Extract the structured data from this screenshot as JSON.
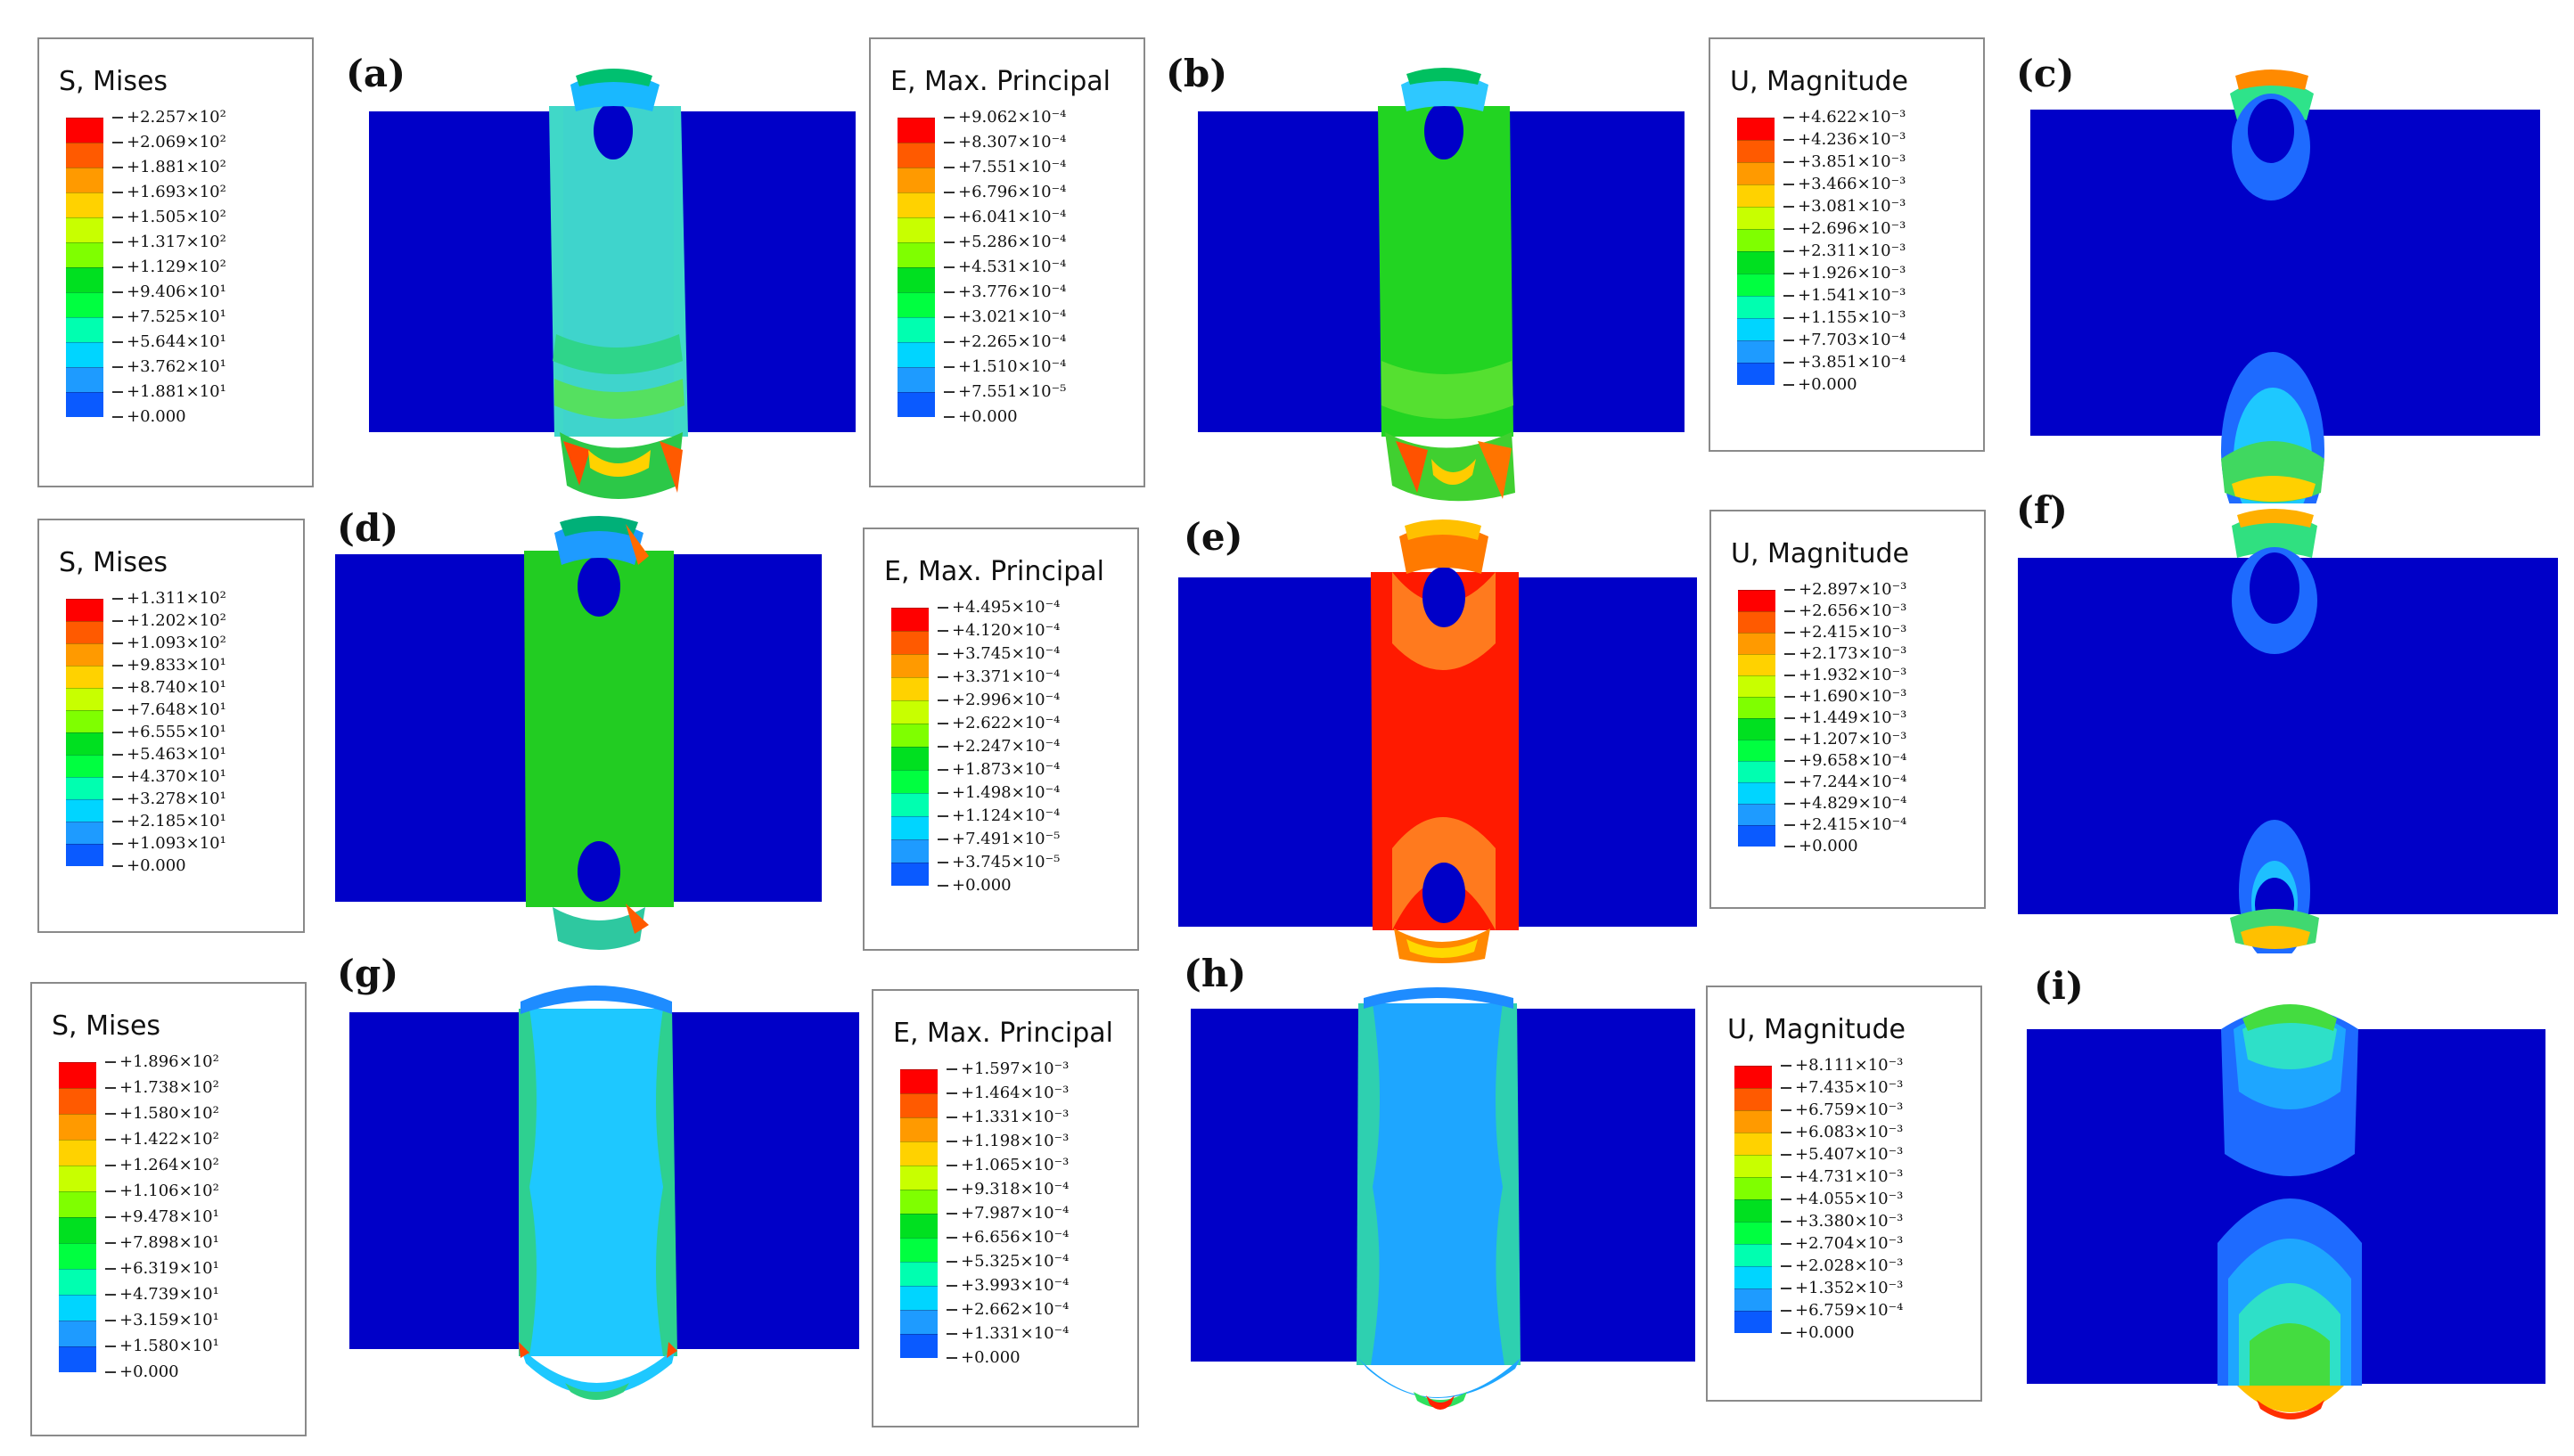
{
  "panels": [
    "(a)",
    "(b)",
    "(c)",
    "(d)",
    "(e)",
    "(f)",
    "(g)",
    "(h)",
    "(i)"
  ],
  "colors": {
    "scale": [
      "#0000ff",
      "#0a5aff",
      "#1e9bff",
      "#00d5ff",
      "#00ffb0",
      "#00ff40",
      "#00e020",
      "#7fff00",
      "#c8ff00",
      "#ffd200",
      "#ff9a00",
      "#ff5a00",
      "#ff0000"
    ],
    "plate": "#0000c8"
  },
  "legends": [
    {
      "title": "S, Mises",
      "labels": [
        "2.257×10²",
        "2.069×10²",
        "1.881×10²",
        "1.693×10²",
        "1.505×10²",
        "1.317×10²",
        "1.129×10²",
        "9.406×10¹",
        "7.525×10¹",
        "5.644×10¹",
        "3.762×10¹",
        "1.881×10¹",
        "0.000"
      ]
    },
    {
      "title": "E, Max. Principal",
      "labels": [
        "9.062×10⁻⁴",
        "8.307×10⁻⁴",
        "7.551×10⁻⁴",
        "6.796×10⁻⁴",
        "6.041×10⁻⁴",
        "5.286×10⁻⁴",
        "4.531×10⁻⁴",
        "3.776×10⁻⁴",
        "3.021×10⁻⁴",
        "2.265×10⁻⁴",
        "1.510×10⁻⁴",
        "7.551×10⁻⁵",
        "0.000"
      ]
    },
    {
      "title": "U, Magnitude",
      "labels": [
        "4.622×10⁻³",
        "4.236×10⁻³",
        "3.851×10⁻³",
        "3.466×10⁻³",
        "3.081×10⁻³",
        "2.696×10⁻³",
        "2.311×10⁻³",
        "1.926×10⁻³",
        "1.541×10⁻³",
        "1.155×10⁻³",
        "7.703×10⁻⁴",
        "3.851×10⁻⁴",
        "0.000"
      ]
    },
    {
      "title": "S, Mises",
      "labels": [
        "1.311×10²",
        "1.202×10²",
        "1.093×10²",
        "9.833×10¹",
        "8.740×10¹",
        "7.648×10¹",
        "6.555×10¹",
        "5.463×10¹",
        "4.370×10¹",
        "3.278×10¹",
        "2.185×10¹",
        "1.093×10¹",
        "0.000"
      ]
    },
    {
      "title": "E, Max. Principal",
      "labels": [
        "4.495×10⁻⁴",
        "4.120×10⁻⁴",
        "3.745×10⁻⁴",
        "3.371×10⁻⁴",
        "2.996×10⁻⁴",
        "2.622×10⁻⁴",
        "2.247×10⁻⁴",
        "1.873×10⁻⁴",
        "1.498×10⁻⁴",
        "1.124×10⁻⁴",
        "7.491×10⁻⁵",
        "3.745×10⁻⁵",
        "0.000"
      ]
    },
    {
      "title": "U, Magnitude",
      "labels": [
        "2.897×10⁻³",
        "2.656×10⁻³",
        "2.415×10⁻³",
        "2.173×10⁻³",
        "1.932×10⁻³",
        "1.690×10⁻³",
        "1.449×10⁻³",
        "1.207×10⁻³",
        "9.658×10⁻⁴",
        "7.244×10⁻⁴",
        "4.829×10⁻⁴",
        "2.415×10⁻⁴",
        "0.000"
      ]
    },
    {
      "title": "S, Mises",
      "labels": [
        "1.896×10²",
        "1.738×10²",
        "1.580×10²",
        "1.422×10²",
        "1.264×10²",
        "1.106×10²",
        "9.478×10¹",
        "7.898×10¹",
        "6.319×10¹",
        "4.739×10¹",
        "3.159×10¹",
        "1.580×10¹",
        "0.000"
      ]
    },
    {
      "title": "E, Max. Principal",
      "labels": [
        "1.597×10⁻³",
        "1.464×10⁻³",
        "1.331×10⁻³",
        "1.198×10⁻³",
        "1.065×10⁻³",
        "9.318×10⁻⁴",
        "7.987×10⁻⁴",
        "6.656×10⁻⁴",
        "5.325×10⁻⁴",
        "3.993×10⁻⁴",
        "2.662×10⁻⁴",
        "1.331×10⁻⁴",
        "0.000"
      ]
    },
    {
      "title": "U, Magnitude",
      "labels": [
        "8.111×10⁻³",
        "7.435×10⁻³",
        "6.759×10⁻³",
        "6.083×10⁻³",
        "5.407×10⁻³",
        "4.731×10⁻³",
        "4.055×10⁻³",
        "3.380×10⁻³",
        "2.704×10⁻³",
        "2.028×10⁻³",
        "1.352×10⁻³",
        "6.759×10⁻⁴",
        "0.000"
      ]
    }
  ]
}
